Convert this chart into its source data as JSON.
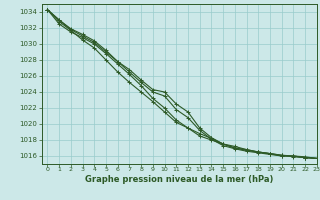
{
  "title": "Graphe pression niveau de la mer (hPa)",
  "background_color": "#cce8e8",
  "grid_color": "#99cccc",
  "line_color": "#2d5a27",
  "xlim": [
    -0.5,
    23
  ],
  "ylim": [
    1015.0,
    1035.0
  ],
  "yticks": [
    1016,
    1018,
    1020,
    1022,
    1024,
    1026,
    1028,
    1030,
    1032,
    1034
  ],
  "xticks": [
    0,
    1,
    2,
    3,
    4,
    5,
    6,
    7,
    8,
    9,
    10,
    11,
    12,
    13,
    14,
    15,
    16,
    17,
    18,
    19,
    20,
    21,
    22,
    23
  ],
  "series": [
    [
      1034.3,
      1033.0,
      1031.8,
      1031.0,
      1030.2,
      1029.0,
      1027.8,
      1026.8,
      1025.5,
      1024.3,
      1024.0,
      1022.5,
      1021.5,
      1019.5,
      1018.3,
      1017.5,
      1017.0,
      1016.8,
      1016.5,
      1016.3,
      1016.0,
      1016.0,
      1015.8,
      1015.7
    ],
    [
      1034.3,
      1032.5,
      1031.5,
      1030.8,
      1030.0,
      1028.8,
      1027.5,
      1026.2,
      1024.8,
      1023.2,
      1022.0,
      1020.5,
      1019.5,
      1018.5,
      1018.0,
      1017.5,
      1017.2,
      1016.8,
      1016.5,
      1016.3,
      1016.1,
      1015.9,
      1015.8,
      1015.7
    ],
    [
      1034.3,
      1032.8,
      1031.7,
      1030.5,
      1029.5,
      1028.0,
      1026.5,
      1025.2,
      1024.0,
      1022.8,
      1021.5,
      1020.2,
      1019.5,
      1018.8,
      1018.2,
      1017.5,
      1017.0,
      1016.7,
      1016.5,
      1016.3,
      1016.1,
      1016.0,
      1015.9,
      1015.7
    ],
    [
      1034.3,
      1033.0,
      1031.9,
      1031.2,
      1030.4,
      1029.2,
      1027.8,
      1026.5,
      1025.2,
      1024.0,
      1023.5,
      1021.8,
      1020.8,
      1019.2,
      1018.1,
      1017.3,
      1016.9,
      1016.6,
      1016.4,
      1016.2,
      1016.0,
      1016.0,
      1015.8,
      1015.7
    ]
  ]
}
